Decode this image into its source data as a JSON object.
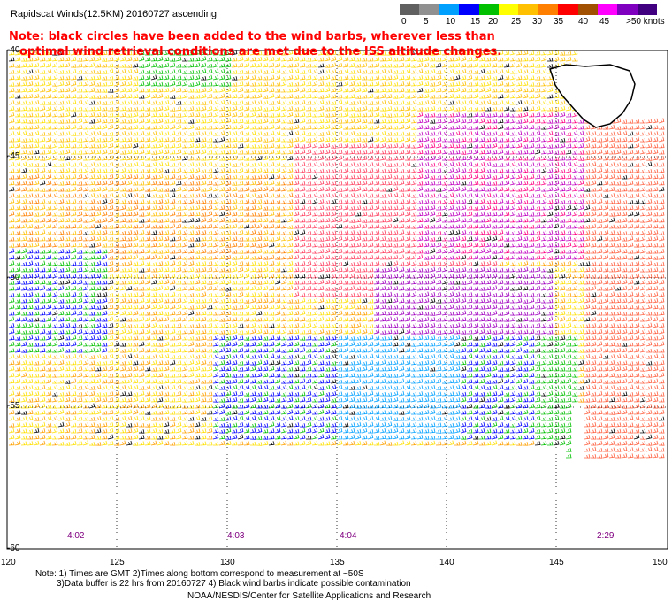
{
  "title": "Rapidscat Winds(12.5KM) 20160727 ascending",
  "note_line1": "Note: black circles have been added to the wind barbs, wherever less than",
  "note_line2": "optimal wind retrieval conditions are met due to the ISS altitude changes.",
  "legend": {
    "labels": [
      "0",
      "5",
      "10",
      "15",
      "20",
      "25",
      "30",
      "35",
      "40",
      "45",
      ">50 knots"
    ],
    "colors": [
      "#606060",
      "#909090",
      "#00a0ff",
      "#0000ff",
      "#00c000",
      "#ffff00",
      "#ffc000",
      "#ff8000",
      "#ff0000",
      "#a05000",
      "#ff00ff",
      "#8000c0",
      "#400080"
    ]
  },
  "lat_labels": [
    "-40",
    "-45",
    "-50",
    "-55",
    "-60"
  ],
  "lon_labels": [
    "120",
    "125",
    "130",
    "135",
    "140",
    "145",
    "150"
  ],
  "time_labels": [
    "4:02",
    "4:03",
    "4:04",
    "2:29"
  ],
  "footnote1": "Note: 1) Times are GMT 2)Times along bottom correspond to measurement at ~50S",
  "footnote2": "3)Data buffer is 22 hrs from 20160727 4) Black wind barbs indicate possible contamination",
  "credit": "NOAA/NESDIS/Center for Satellite Applications and Research",
  "colors": {
    "note": "#ff0000",
    "time_label": "#800080",
    "grid": "#000000",
    "land": "#ffffff"
  }
}
